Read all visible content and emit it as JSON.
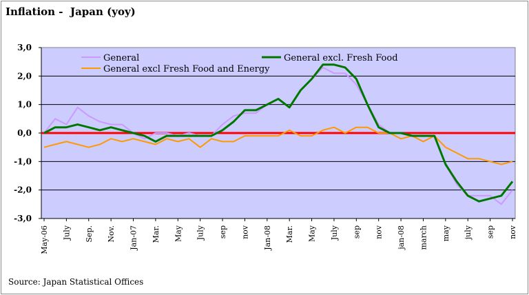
{
  "chart_data": {
    "type": "line",
    "title": "Inflation -  Japan (yoy)",
    "source": "Source: Japan Statistical Offices",
    "xlabel": "",
    "ylabel": "",
    "ylim": [
      -3.0,
      3.0
    ],
    "y_ticks": [
      "3,0",
      "2,0",
      "1,0",
      "0,0",
      "-1,0",
      "-2,0",
      "-3,0"
    ],
    "x_tick_labels": [
      "May-06",
      "July",
      "Sep.",
      "Nov.",
      "Jan-07",
      "Mar.",
      "May",
      "July",
      "sep",
      "nov",
      "Jan-08",
      "Mar.",
      "May",
      "July",
      "sep",
      "nov",
      "jan-08",
      "march",
      "may",
      "july",
      "sep",
      "nov"
    ],
    "grid": true,
    "legend_position": "top",
    "plot_background": "#ccccff",
    "zero_line_color": "#ff0000",
    "series": [
      {
        "name": "General",
        "color": "#cc99ff",
        "values": [
          0.0,
          0.5,
          0.3,
          0.9,
          0.6,
          0.4,
          0.3,
          0.3,
          0.0,
          -0.2,
          0.0,
          0.0,
          -0.1,
          0.0,
          -0.1,
          -0.1,
          0.3,
          0.6,
          0.7,
          0.7,
          1.0,
          1.2,
          0.9,
          1.5,
          1.9,
          2.3,
          2.1,
          2.1,
          1.7,
          1.0,
          0.3,
          0.0,
          0.0,
          -0.1,
          -0.3,
          -0.1,
          -1.1,
          -1.8,
          -2.2,
          -2.2,
          -2.2,
          -2.5,
          -2.0
        ]
      },
      {
        "name": "General excl. Fresh Food",
        "color": "#007700",
        "values": [
          0.0,
          0.2,
          0.2,
          0.3,
          0.2,
          0.1,
          0.2,
          0.1,
          0.0,
          -0.1,
          -0.3,
          -0.1,
          -0.1,
          -0.1,
          -0.1,
          -0.1,
          0.1,
          0.4,
          0.8,
          0.8,
          1.0,
          1.2,
          0.9,
          1.5,
          1.9,
          2.4,
          2.4,
          2.3,
          1.9,
          1.0,
          0.2,
          0.0,
          0.0,
          -0.1,
          -0.1,
          -0.1,
          -1.1,
          -1.7,
          -2.2,
          -2.4,
          -2.3,
          -2.2,
          -1.7
        ]
      },
      {
        "name": "General excl Fresh Food and Energy",
        "color": "#ff9900",
        "values": [
          -0.5,
          -0.4,
          -0.3,
          -0.4,
          -0.5,
          -0.4,
          -0.2,
          -0.3,
          -0.2,
          -0.3,
          -0.4,
          -0.2,
          -0.3,
          -0.2,
          -0.5,
          -0.2,
          -0.3,
          -0.3,
          -0.1,
          -0.1,
          -0.1,
          -0.1,
          0.1,
          -0.1,
          -0.1,
          0.1,
          0.2,
          0.0,
          0.2,
          0.2,
          0.0,
          0.0,
          -0.2,
          -0.1,
          -0.3,
          -0.1,
          -0.5,
          -0.7,
          -0.9,
          -0.9,
          -1.0,
          -1.1,
          -1.0
        ]
      }
    ]
  }
}
